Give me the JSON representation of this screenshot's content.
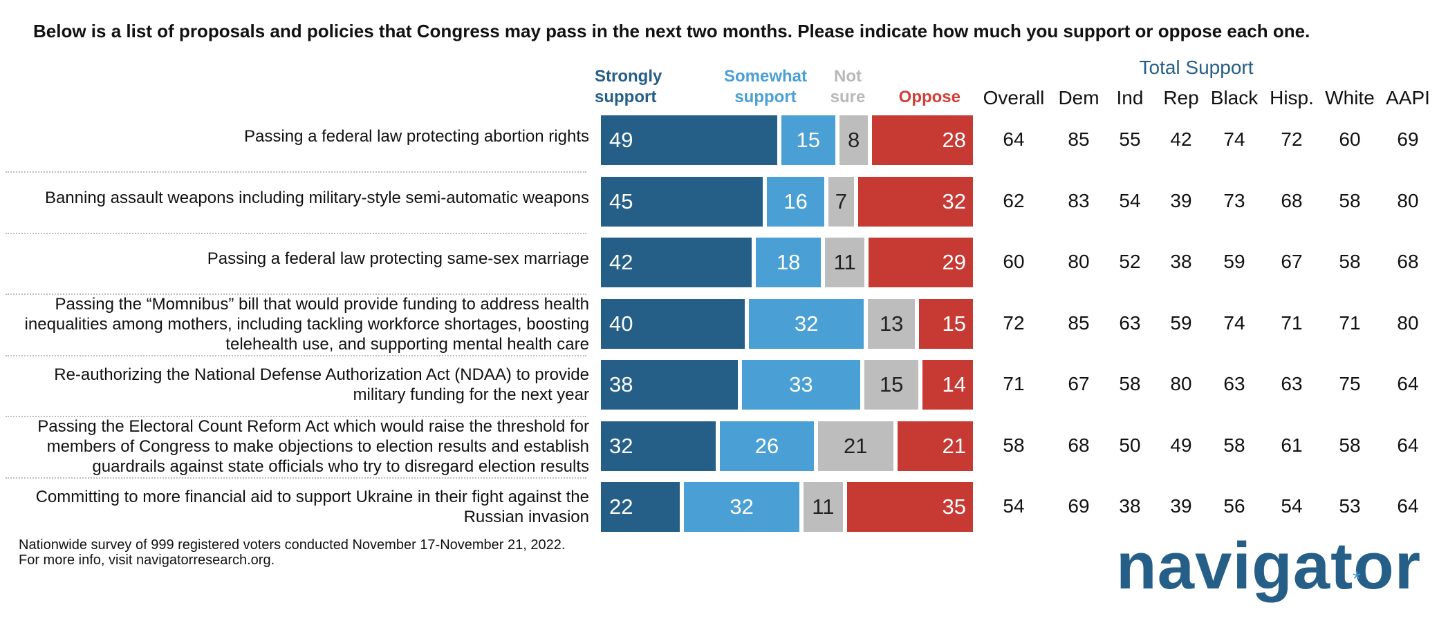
{
  "title": "Below is a list of proposals and policies that Congress may pass in the next two months. Please indicate how much you support or oppose each one.",
  "legend": {
    "strongly_support": [
      "Strongly",
      "support"
    ],
    "somewhat_support": [
      "Somewhat",
      "support"
    ],
    "not_sure": [
      "Not",
      "sure"
    ],
    "oppose": "Oppose"
  },
  "total_support_heading": "Total Support",
  "columns": [
    "Overall",
    "Dem",
    "Ind",
    "Rep",
    "Black",
    "Hisp.",
    "White",
    "AAPI"
  ],
  "colors": {
    "strongly_support": "#255e87",
    "somewhat_support": "#4a9fd4",
    "not_sure": "#bdbdbd",
    "oppose": "#c73a33"
  },
  "chart_data": {
    "type": "bar",
    "stacked": true,
    "orientation": "horizontal",
    "title": "Below is a list of proposals and policies that Congress may pass in the next two months. Please indicate how much you support or oppose each one.",
    "categories": [
      "Passing a federal law protecting abortion rights",
      "Banning assault weapons including military-style semi-automatic weapons",
      "Passing a federal law protecting same-sex marriage",
      "Passing the “Momnibus” bill that would provide funding to address health inequalities among mothers, including tackling workforce shortages, boosting telehealth use, and supporting mental health care",
      "Re-authorizing the National Defense Authorization Act (NDAA) to provide military funding for the next year",
      "Passing the Electoral Count Reform Act which would raise the threshold for members of Congress to make objections to election results and establish guardrails against state officials who try to disregard election results",
      "Committing to more financial aid to support Ukraine in their fight against the Russian invasion"
    ],
    "category_lines": [
      [
        "Passing a federal law protecting abortion rights"
      ],
      [
        "Banning assault weapons including military-style semi-automatic weapons"
      ],
      [
        "Passing a federal law protecting same-sex marriage"
      ],
      [
        "Passing the “Momnibus” bill that would provide funding to address health",
        "inequalities among mothers, including tackling workforce shortages, boosting",
        "telehealth use, and supporting mental health care"
      ],
      [
        "Re-authorizing the National Defense Authorization Act (NDAA) to provide",
        "military funding for the next year"
      ],
      [
        "Passing the Electoral Count Reform Act which would raise the threshold for",
        "members of Congress to make objections to election results and establish",
        "guardrails against state officials who try to disregard election results"
      ],
      [
        "Committing to more financial aid to support Ukraine in their fight against the",
        "Russian invasion"
      ]
    ],
    "series": [
      {
        "name": "Strongly support",
        "values": [
          49,
          45,
          42,
          40,
          38,
          32,
          22
        ]
      },
      {
        "name": "Somewhat support",
        "values": [
          15,
          16,
          18,
          32,
          33,
          26,
          32
        ]
      },
      {
        "name": "Not sure",
        "values": [
          8,
          7,
          11,
          13,
          15,
          21,
          11
        ]
      },
      {
        "name": "Oppose",
        "values": [
          28,
          32,
          29,
          15,
          14,
          21,
          35
        ]
      }
    ],
    "total_support": [
      [
        64,
        85,
        55,
        42,
        74,
        72,
        60,
        69
      ],
      [
        62,
        83,
        54,
        39,
        73,
        68,
        58,
        80
      ],
      [
        60,
        80,
        52,
        38,
        59,
        67,
        58,
        68
      ],
      [
        72,
        85,
        63,
        59,
        74,
        71,
        71,
        80
      ],
      [
        71,
        67,
        58,
        80,
        63,
        63,
        75,
        64
      ],
      [
        58,
        68,
        50,
        49,
        58,
        61,
        58,
        64
      ],
      [
        54,
        69,
        38,
        39,
        56,
        54,
        53,
        64
      ]
    ],
    "xlim": [
      0,
      100
    ]
  },
  "footnote": [
    "Nationwide survey of 999 registered voters conducted November 17-November 21, 2022.",
    "For more info, visit navigatorresearch.org."
  ],
  "logo": {
    "text": "navigator",
    "mark": "*"
  }
}
